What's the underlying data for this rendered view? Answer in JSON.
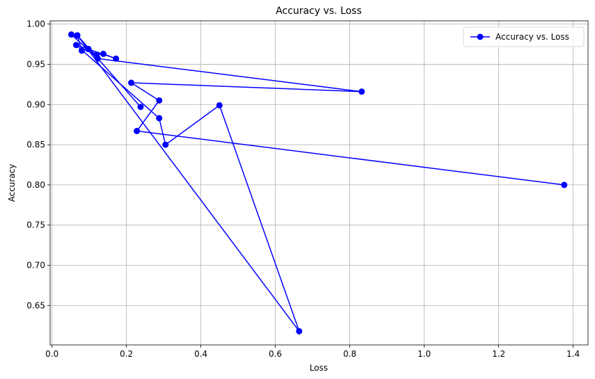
{
  "chart_data": {
    "type": "line",
    "title": "Accuracy vs. Loss",
    "xlabel": "Loss",
    "ylabel": "Accuracy",
    "xlim": [
      -0.005,
      1.44
    ],
    "ylim": [
      0.601,
      1.004
    ],
    "xticks": [
      0.0,
      0.2,
      0.4,
      0.6,
      0.8,
      1.0,
      1.2,
      1.4
    ],
    "xtick_labels": [
      "0.0",
      "0.2",
      "0.4",
      "0.6",
      "0.8",
      "1.0",
      "1.2",
      "1.4"
    ],
    "yticks": [
      0.65,
      0.7,
      0.75,
      0.8,
      0.85,
      0.9,
      0.95,
      1.0
    ],
    "ytick_labels": [
      "0.65",
      "0.70",
      "0.75",
      "0.80",
      "0.85",
      "0.90",
      "0.95",
      "1.00"
    ],
    "grid": true,
    "legend_position": "top-right",
    "series": [
      {
        "name": "Accuracy vs. Loss",
        "color": "#0000ff",
        "marker": "circle",
        "x": [
          1.376,
          0.228,
          0.288,
          0.213,
          0.832,
          0.123,
          0.052,
          0.068,
          0.08,
          0.098,
          0.12,
          0.138,
          0.172,
          0.097,
          0.065,
          0.288,
          0.305,
          0.45,
          0.664,
          0.068,
          0.238
        ],
        "y": [
          0.8,
          0.867,
          0.905,
          0.927,
          0.916,
          0.957,
          0.987,
          0.986,
          0.967,
          0.969,
          0.962,
          0.963,
          0.957,
          0.969,
          0.974,
          0.883,
          0.85,
          0.899,
          0.618,
          0.986,
          0.897
        ]
      }
    ]
  }
}
